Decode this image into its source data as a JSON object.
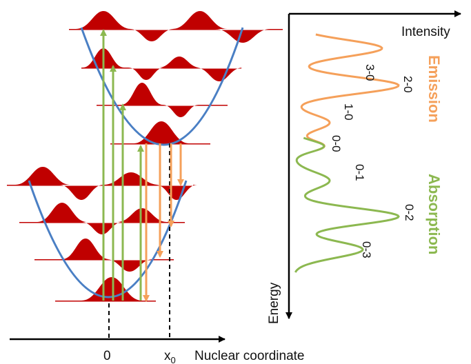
{
  "colors": {
    "parabola": "#4a7fc4",
    "wavefunction": "#c00000",
    "emission": "#f5a05a",
    "absorption": "#8cb850",
    "axis": "#000000"
  },
  "labels": {
    "intensity": "Intensity",
    "energy": "Energy",
    "emission": "Emission",
    "absorption": "Absorption",
    "x_axis": "Nuclear coordinate",
    "origin": "0",
    "x0": "x",
    "x0_sub": "0"
  },
  "spectrum": {
    "emission_peaks": [
      "3-0",
      "2-0",
      "1-0",
      "0-0"
    ],
    "absorption_peaks": [
      "0-1",
      "0-2",
      "0-3"
    ]
  }
}
